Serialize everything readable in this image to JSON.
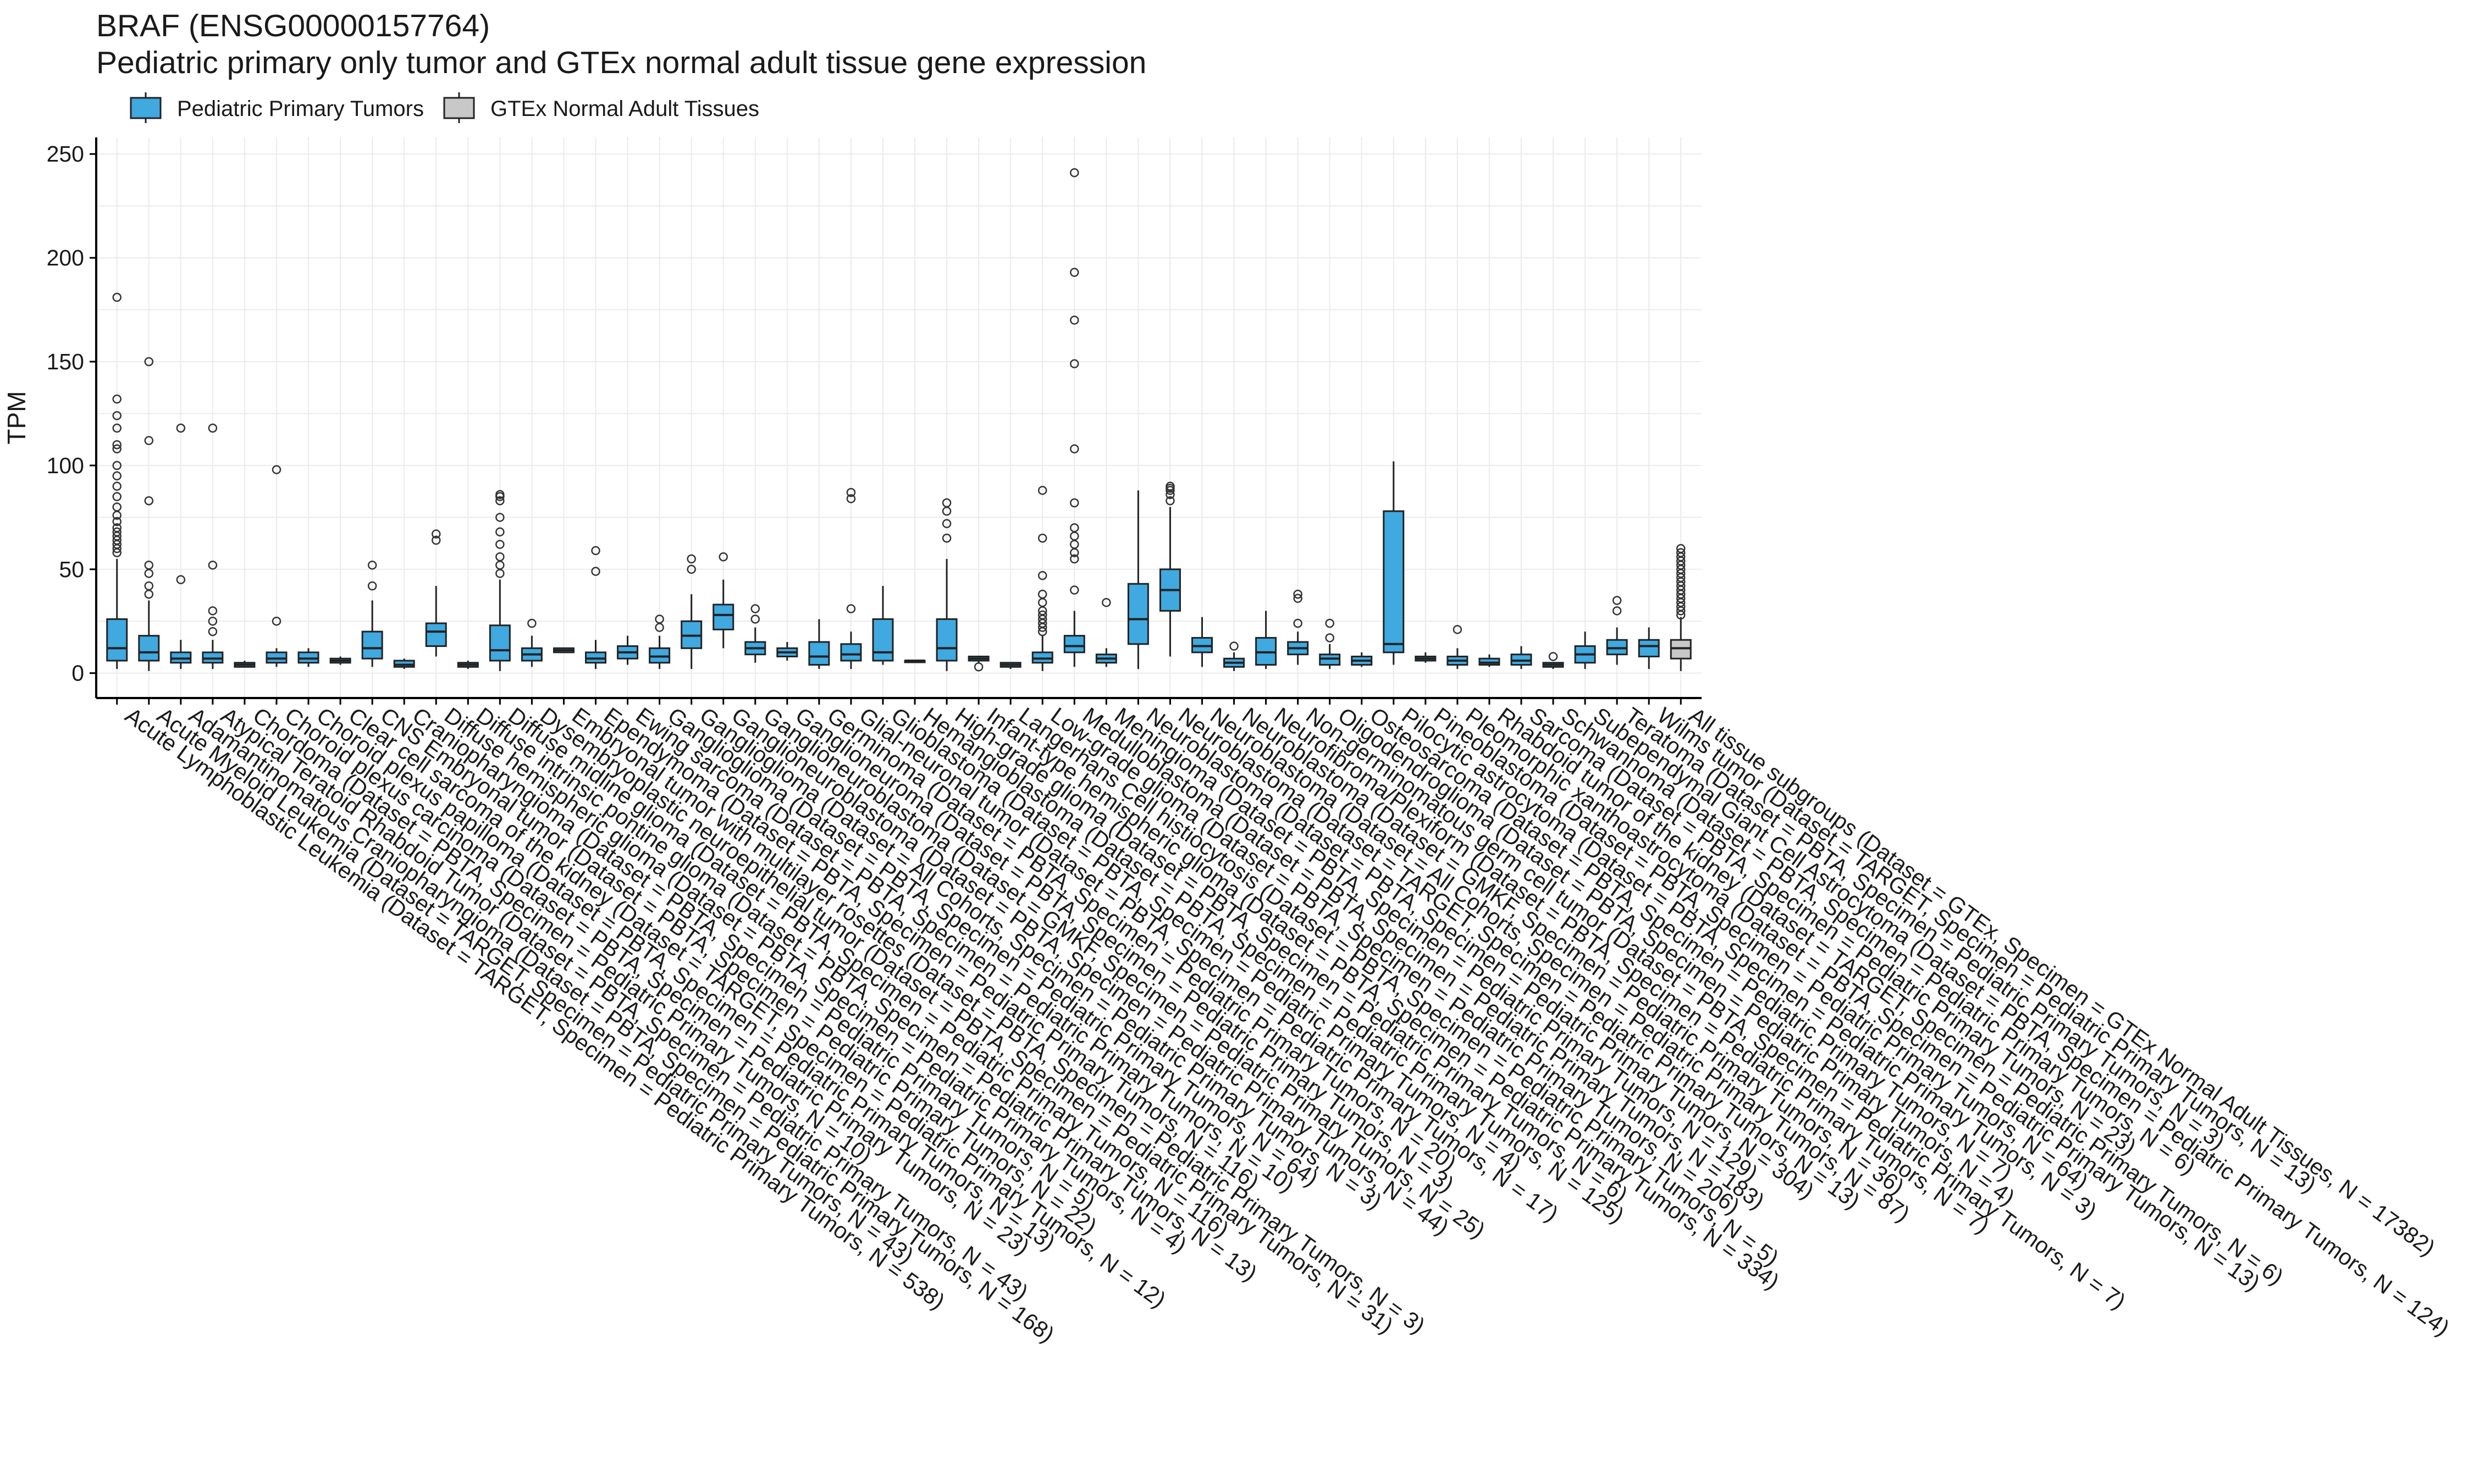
{
  "title": "BRAF (ENSG00000157764)",
  "subtitle": "Pediatric primary only tumor and GTEx normal adult tissue gene expression",
  "legend": [
    {
      "label": "Pediatric Primary Tumors",
      "color": "#3fa9e0"
    },
    {
      "label": "GTEx Normal Adult Tissues",
      "color": "#c8c8c8"
    }
  ],
  "chart_data": {
    "type": "box",
    "ylabel": "TPM",
    "xlabel": "",
    "ylim": [
      0,
      250
    ],
    "yticks": [
      0,
      50,
      100,
      150,
      200,
      250
    ],
    "grid": true,
    "legend_position": "top-left",
    "categories": [
      {
        "label": "Acute Lymphoblastic Leukemia  (Dataset = TARGET, Specimen = Pediatric Primary Tumors, N = 538)",
        "group": 0,
        "q1": 6,
        "median": 12,
        "q3": 26,
        "lo": 2,
        "hi": 55,
        "outliers": [
          58,
          60,
          62,
          64,
          66,
          68,
          70,
          73,
          76,
          80,
          85,
          90,
          95,
          100,
          108,
          110,
          118,
          124,
          132,
          181
        ]
      },
      {
        "label": "Acute Myeloid Leukemia  (Dataset = TARGET, Specimen = Pediatric Primary Tumors, N = 43)",
        "group": 0,
        "q1": 6,
        "median": 10,
        "q3": 18,
        "lo": 1,
        "hi": 35,
        "outliers": [
          38,
          42,
          48,
          52,
          83,
          112,
          150
        ]
      },
      {
        "label": "Adamantinomatous Craniopharyngioma  (Dataset = PBTA, Specimen = Pediatric Primary Tumors, N = 168)",
        "group": 0,
        "q1": 5,
        "median": 7,
        "q3": 10,
        "lo": 2,
        "hi": 16,
        "outliers": [
          45,
          118
        ]
      },
      {
        "label": "Atypical Teratoid Rhabdoid Tumor  (Dataset = PBTA, Specimen = Pediatric Primary Tumors, N = 43)",
        "group": 0,
        "q1": 5,
        "median": 7,
        "q3": 10,
        "lo": 2,
        "hi": 16,
        "outliers": [
          20,
          25,
          30,
          52,
          118
        ]
      },
      {
        "label": "Chordoma  (Dataset = PBTA, Specimen = Pediatric Primary Tumors, N = 10)",
        "group": 0,
        "q1": 3,
        "median": 4,
        "q3": 5,
        "lo": 3,
        "hi": 6,
        "outliers": []
      },
      {
        "label": "Choroid plexus carcinoma  (Dataset = PBTA, Specimen = Pediatric Primary Tumors, N = 23)",
        "group": 0,
        "q1": 5,
        "median": 7,
        "q3": 10,
        "lo": 3,
        "hi": 12,
        "outliers": [
          25,
          98
        ]
      },
      {
        "label": "Choroid plexus papilloma  (Dataset = PBTA, Specimen = Pediatric Primary Tumors, N = 13)",
        "group": 0,
        "q1": 5,
        "median": 7,
        "q3": 10,
        "lo": 3,
        "hi": 12,
        "outliers": []
      },
      {
        "label": "Clear cell sarcoma of the kidney  (Dataset = TARGET, Specimen = Pediatric Primary Tumors, N = 12)",
        "group": 0,
        "q1": 5,
        "median": 6,
        "q3": 7,
        "lo": 4,
        "hi": 8,
        "outliers": []
      },
      {
        "label": "CNS Embryonal tumor  (Dataset = PBTA, Specimen = Pediatric Primary Tumors, N = 22)",
        "group": 0,
        "q1": 7,
        "median": 12,
        "q3": 20,
        "lo": 3,
        "hi": 35,
        "outliers": [
          42,
          52
        ]
      },
      {
        "label": "Craniopharyngioma  (Dataset = PBTA, Specimen = Pediatric Primary Tumors, N = 5)",
        "group": 0,
        "q1": 3,
        "median": 4,
        "q3": 6,
        "lo": 2,
        "hi": 7,
        "outliers": []
      },
      {
        "label": "Diffuse hemispheric glioma  (Dataset = PBTA, Specimen = Pediatric Primary Tumors, N = 4)",
        "group": 0,
        "q1": 13,
        "median": 20,
        "q3": 24,
        "lo": 8,
        "hi": 42,
        "outliers": [
          64,
          67
        ]
      },
      {
        "label": "Diffuse intrinsic pontine glioma  (Dataset = PBTA, Specimen = Pediatric Primary Tumors, N = 13)",
        "group": 0,
        "q1": 3,
        "median": 4,
        "q3": 5,
        "lo": 2,
        "hi": 6,
        "outliers": []
      },
      {
        "label": "Diffuse midline glioma  (Dataset = PBTA, Specimen = Pediatric Primary Tumors, N = 116)",
        "group": 0,
        "q1": 6,
        "median": 11,
        "q3": 23,
        "lo": 1,
        "hi": 45,
        "outliers": [
          48,
          52,
          56,
          62,
          68,
          75,
          83,
          85,
          86
        ]
      },
      {
        "label": "Dysembryoplastic neuroepithelial tumor  (Dataset = PBTA, Specimen = Pediatric Primary Tumors, N = 31)",
        "group": 0,
        "q1": 6,
        "median": 9,
        "q3": 12,
        "lo": 3,
        "hi": 18,
        "outliers": [
          24
        ]
      },
      {
        "label": "Embryonal tumor with multilayer rosettes  (Dataset = PBTA, Specimen = Pediatric Primary Tumors, N = 3)",
        "group": 0,
        "q1": 10,
        "median": 11,
        "q3": 12,
        "lo": 10,
        "hi": 12,
        "outliers": []
      },
      {
        "label": "Ependymoma  (Dataset = PBTA, Specimen = Pediatric Primary Tumors, N = 116)",
        "group": 0,
        "q1": 5,
        "median": 7,
        "q3": 10,
        "lo": 2,
        "hi": 16,
        "outliers": [
          49,
          59
        ]
      },
      {
        "label": "Ewing sarcoma  (Dataset = PBTA, Specimen = Pediatric Primary Tumors, N = 10)",
        "group": 0,
        "q1": 7,
        "median": 10,
        "q3": 13,
        "lo": 4,
        "hi": 18,
        "outliers": []
      },
      {
        "label": "Ganglioglioma  (Dataset = PBTA, Specimen = Pediatric Primary Tumors, N = 64)",
        "group": 0,
        "q1": 5,
        "median": 8,
        "q3": 12,
        "lo": 2,
        "hi": 18,
        "outliers": [
          22,
          26
        ]
      },
      {
        "label": "Ganglioglioma  (Dataset = All Cohorts, Specimen = Pediatric Primary Tumors, N = 3)",
        "group": 0,
        "q1": 12,
        "median": 18,
        "q3": 25,
        "lo": 2,
        "hi": 38,
        "outliers": [
          50,
          55
        ]
      },
      {
        "label": "Ganglioneuroblastoma  (Dataset = PBTA, Specimen = Pediatric Primary Tumors, N = 44)",
        "group": 0,
        "q1": 21,
        "median": 28,
        "q3": 33,
        "lo": 12,
        "hi": 45,
        "outliers": [
          56
        ]
      },
      {
        "label": "Ganglioneuroblastoma  (Dataset = GMKF, Specimen = Pediatric Primary Tumors, N = 25)",
        "group": 0,
        "q1": 9,
        "median": 12,
        "q3": 15,
        "lo": 5,
        "hi": 22,
        "outliers": [
          26,
          31
        ]
      },
      {
        "label": "Ganglioneuroma  (Dataset = PBTA, Specimen = Pediatric Primary Tumors, N = 3)",
        "group": 0,
        "q1": 8,
        "median": 10,
        "q3": 12,
        "lo": 6,
        "hi": 15,
        "outliers": []
      },
      {
        "label": "Germinoma  (Dataset = PBTA, Specimen = Pediatric Primary Tumors, N = 20)",
        "group": 0,
        "q1": 4,
        "median": 8,
        "q3": 15,
        "lo": 2,
        "hi": 26,
        "outliers": []
      },
      {
        "label": "Glial-neuronal tumor  (Dataset = PBTA, Specimen = Pediatric Primary Tumors, N = 17)",
        "group": 0,
        "q1": 6,
        "median": 9,
        "q3": 14,
        "lo": 2,
        "hi": 20,
        "outliers": [
          31,
          84,
          87
        ]
      },
      {
        "label": "Glioblastoma  (Dataset = PBTA, Specimen = Pediatric Primary Tumors, N = 4)",
        "group": 0,
        "q1": 6,
        "median": 10,
        "q3": 26,
        "lo": 4,
        "hi": 42,
        "outliers": []
      },
      {
        "label": "Hemangioblastoma  (Dataset = PBTA, Specimen = Pediatric Primary Tumors, N = 125)",
        "group": 0,
        "q1": 6,
        "median": 6,
        "q3": 6,
        "lo": 6,
        "hi": 6,
        "outliers": []
      },
      {
        "label": "High-grade glioma  (Dataset = PBTA, Specimen = Pediatric Primary Tumors, N = 6)",
        "group": 0,
        "q1": 6,
        "median": 12,
        "q3": 26,
        "lo": 1,
        "hi": 55,
        "outliers": [
          65,
          72,
          78,
          82
        ]
      },
      {
        "label": "Infant-type hemispheric glioma  (Dataset = PBTA, Specimen = Pediatric Primary Tumors, N = 334)",
        "group": 0,
        "q1": 6,
        "median": 7,
        "q3": 8,
        "lo": 5,
        "hi": 8,
        "outliers": [
          3
        ]
      },
      {
        "label": "Langerhans Cell histiocytosis  (Dataset = PBTA, Specimen = Pediatric Primary Tumors, N = 5)",
        "group": 0,
        "q1": 3,
        "median": 4,
        "q3": 5,
        "lo": 2,
        "hi": 5,
        "outliers": []
      },
      {
        "label": "Low-grade glioma  (Dataset = PBTA, Specimen = Pediatric Primary Tumors, N = 206)",
        "group": 0,
        "q1": 5,
        "median": 7,
        "q3": 10,
        "lo": 1,
        "hi": 18,
        "outliers": [
          20,
          22,
          24,
          26,
          28,
          30,
          34,
          38,
          47,
          65,
          88
        ]
      },
      {
        "label": "Medulloblastoma  (Dataset = PBTA, Specimen = Pediatric Primary Tumors, N = 183)",
        "group": 0,
        "q1": 10,
        "median": 13,
        "q3": 18,
        "lo": 3,
        "hi": 30,
        "outliers": [
          40,
          55,
          58,
          62,
          66,
          70,
          82,
          108,
          149,
          170,
          193,
          241
        ]
      },
      {
        "label": "Meningioma  (Dataset = PBTA, Specimen = Pediatric Primary Tumors, N = 129)",
        "group": 0,
        "q1": 5,
        "median": 7,
        "q3": 9,
        "lo": 3,
        "hi": 12,
        "outliers": [
          34
        ]
      },
      {
        "label": "Neuroblastoma  (Dataset = PBTA, Specimen = Pediatric Primary Tumors, N = 304)",
        "group": 0,
        "q1": 14,
        "median": 26,
        "q3": 43,
        "lo": 2,
        "hi": 88,
        "outliers": []
      },
      {
        "label": "Neuroblastoma  (Dataset = TARGET, Specimen = Pediatric Primary Tumors, N = 13)",
        "group": 0,
        "q1": 30,
        "median": 40,
        "q3": 50,
        "lo": 8,
        "hi": 80,
        "outliers": [
          83,
          86,
          88,
          89,
          90
        ]
      },
      {
        "label": "Neuroblastoma  (Dataset = All Cohorts, Specimen = Pediatric Primary Tumors, N = 87)",
        "group": 0,
        "q1": 10,
        "median": 13,
        "q3": 17,
        "lo": 3,
        "hi": 27,
        "outliers": []
      },
      {
        "label": "Neuroblastoma  (Dataset = GMKF, Specimen = Pediatric Primary Tumors, N = 36)",
        "group": 0,
        "q1": 3,
        "median": 5,
        "q3": 7,
        "lo": 1,
        "hi": 10,
        "outliers": [
          13
        ]
      },
      {
        "label": "Neurofibroma/Plexiform  (Dataset = PBTA, Specimen = Pediatric Primary Tumors, N = 7)",
        "group": 0,
        "q1": 4,
        "median": 10,
        "q3": 17,
        "lo": 2,
        "hi": 30,
        "outliers": []
      },
      {
        "label": "Non-germinomatous germ cell tumor  (Dataset = PBTA, Specimen = Pediatric Primary Tumors, N = 7)",
        "group": 0,
        "q1": 9,
        "median": 12,
        "q3": 15,
        "lo": 4,
        "hi": 20,
        "outliers": [
          24,
          36,
          38
        ]
      },
      {
        "label": "Oligodendroglioma  (Dataset = PBTA, Specimen = Pediatric Primary Tumors, N = 4)",
        "group": 0,
        "q1": 4,
        "median": 7,
        "q3": 9,
        "lo": 2,
        "hi": 14,
        "outliers": [
          17,
          24
        ]
      },
      {
        "label": "Osteosarcoma  (Dataset = PBTA, Specimen = Pediatric Primary Tumors, N = 7)",
        "group": 0,
        "q1": 4,
        "median": 6,
        "q3": 8,
        "lo": 3,
        "hi": 10,
        "outliers": []
      },
      {
        "label": "Pilocytic astrocytoma  (Dataset = PBTA, Specimen = Pediatric Primary Tumors, N = 3)",
        "group": 0,
        "q1": 10,
        "median": 14,
        "q3": 78,
        "lo": 4,
        "hi": 102,
        "outliers": []
      },
      {
        "label": "Pineoblastoma  (Dataset = PBTA, Specimen = Pediatric Primary Tumors, N = 64)",
        "group": 0,
        "q1": 6,
        "median": 7,
        "q3": 8,
        "lo": 5,
        "hi": 10,
        "outliers": []
      },
      {
        "label": "Pleomorphic xanthoastrocytoma  (Dataset = PBTA, Specimen = Pediatric Primary Tumors, N = 13)",
        "group": 0,
        "q1": 4,
        "median": 6,
        "q3": 8,
        "lo": 2,
        "hi": 12,
        "outliers": [
          21
        ]
      },
      {
        "label": "Rhabdoid tumor of the kidney  (Dataset = TARGET, Specimen = Pediatric Primary Tumors, N = 6)",
        "group": 0,
        "q1": 4,
        "median": 5,
        "q3": 7,
        "lo": 3,
        "hi": 9,
        "outliers": []
      },
      {
        "label": "Sarcoma  (Dataset = PBTA, Specimen = Pediatric Primary Tumors, N = 23)",
        "group": 0,
        "q1": 4,
        "median": 6,
        "q3": 9,
        "lo": 2,
        "hi": 13,
        "outliers": []
      },
      {
        "label": "Schwannoma  (Dataset = PBTA, Specimen = Pediatric Primary Tumors, N = 6)",
        "group": 0,
        "q1": 3,
        "median": 4,
        "q3": 5,
        "lo": 2,
        "hi": 5,
        "outliers": [
          8
        ]
      },
      {
        "label": "Subependymal Giant Cell Astrocytoma  (Dataset = PBTA, Specimen = Pediatric Primary Tumors, N = 124)",
        "group": 0,
        "q1": 5,
        "median": 9,
        "q3": 13,
        "lo": 2,
        "hi": 20,
        "outliers": []
      },
      {
        "label": "Teratoma  (Dataset = PBTA, Specimen = Pediatric Primary Tumors, N = 3)",
        "group": 0,
        "q1": 9,
        "median": 12,
        "q3": 16,
        "lo": 4,
        "hi": 22,
        "outliers": [
          30,
          35
        ]
      },
      {
        "label": "Wilms tumor  (Dataset = TARGET, Specimen = Pediatric Primary Tumors, N = 13)",
        "group": 0,
        "q1": 8,
        "median": 13,
        "q3": 16,
        "lo": 2,
        "hi": 22,
        "outliers": []
      },
      {
        "label": "All tissue subgroups  (Dataset = GTEx, Specimen = GTEx Normal Adult Tissues, N = 17382)",
        "group": 1,
        "q1": 7,
        "median": 12,
        "q3": 16,
        "lo": 1,
        "hi": 27,
        "outliers": [
          28,
          30,
          32,
          34,
          36,
          38,
          40,
          42,
          44,
          46,
          48,
          50,
          52,
          54,
          56,
          58,
          60
        ]
      }
    ]
  }
}
